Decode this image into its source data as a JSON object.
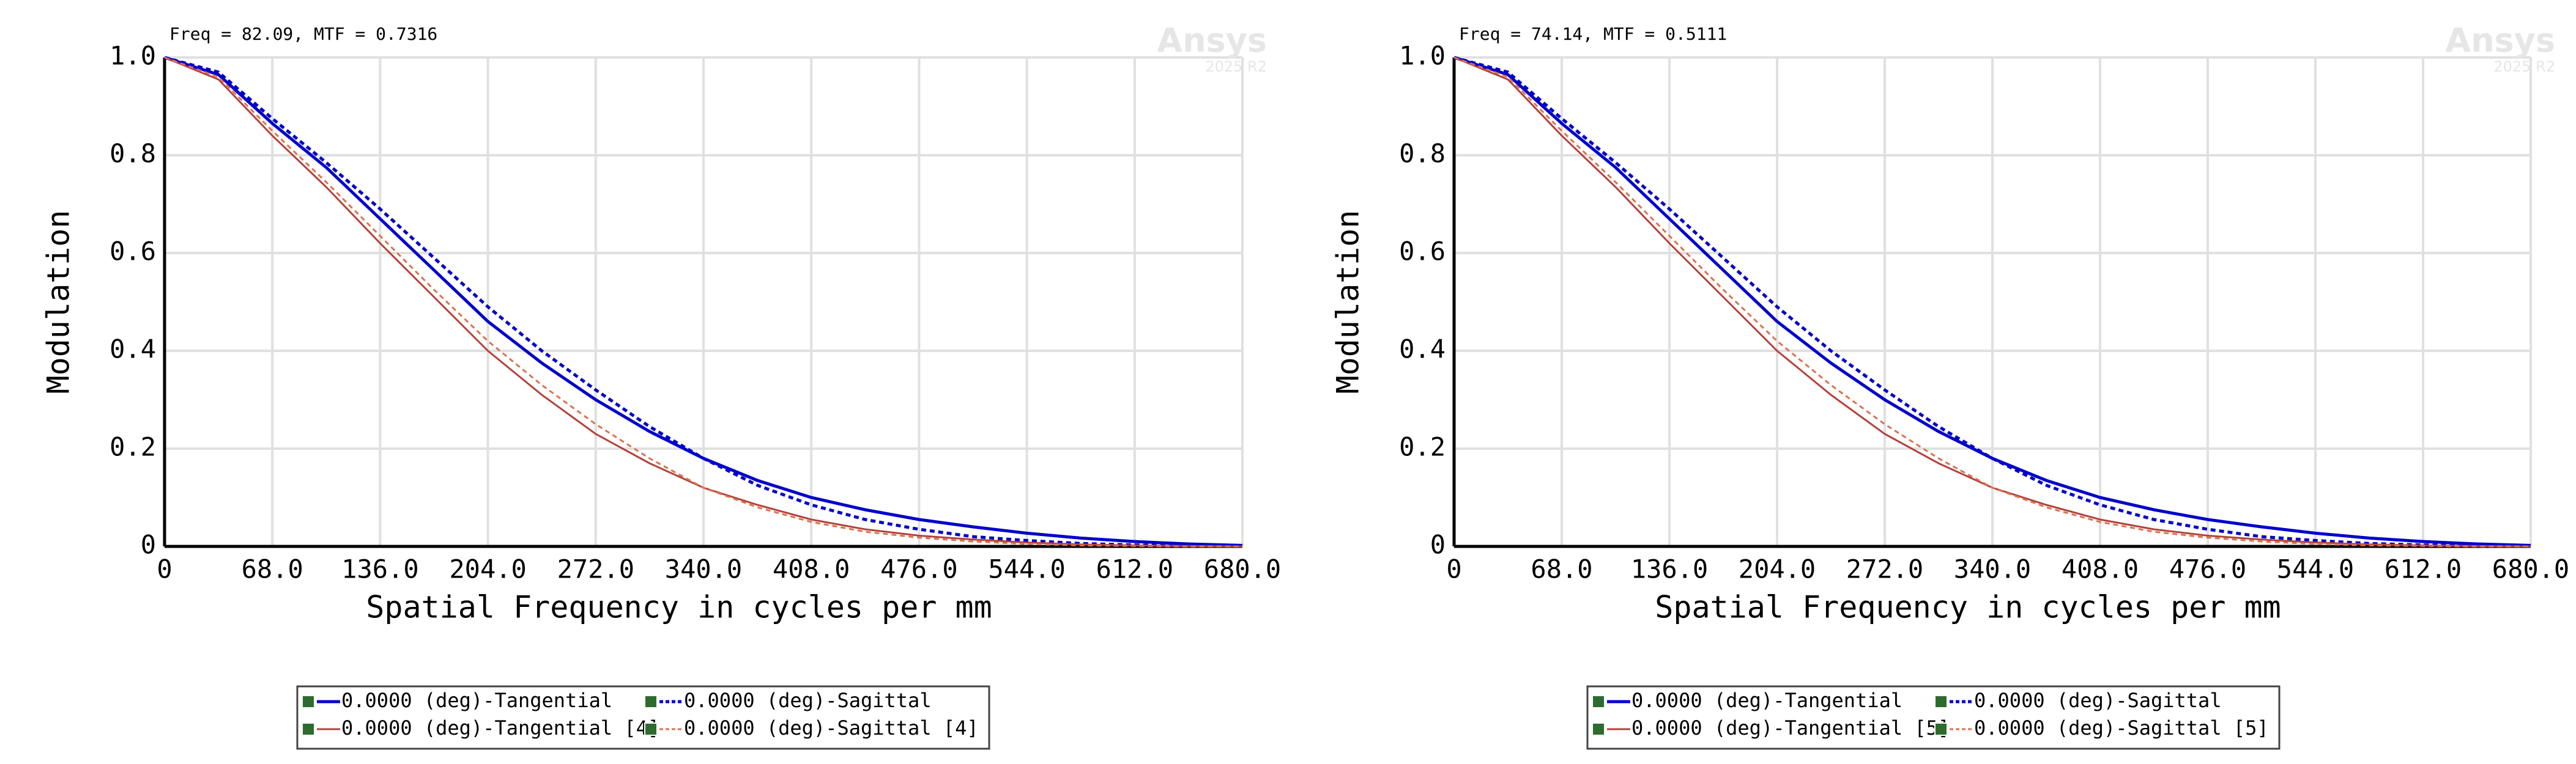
{
  "chart_data": [
    {
      "type": "line",
      "annotation": "Freq = 82.09, MTF = 0.7316",
      "watermark": "Ansys",
      "watermark_sub": "2025 R2",
      "xlabel": "Spatial Frequency in cycles per mm",
      "ylabel": "Modulation",
      "xlim": [
        0,
        680
      ],
      "ylim": [
        0,
        1
      ],
      "xticks": [
        0,
        {
          "value": 68,
          "label": "68.0"
        },
        {
          "value": 136,
          "label": "136.0"
        },
        {
          "value": 204,
          "label": "204.0"
        },
        {
          "value": 272,
          "label": "272.0"
        },
        {
          "value": 340,
          "label": "340.0"
        },
        {
          "value": 408,
          "label": "408.0"
        },
        {
          "value": 476,
          "label": "476.0"
        },
        {
          "value": 544,
          "label": "544.0"
        },
        {
          "value": 612,
          "label": "612.0"
        },
        {
          "value": 680,
          "label": "680.0"
        }
      ],
      "yticks": [
        0,
        0.2,
        0.4,
        0.6,
        0.8,
        {
          "value": 1,
          "label": "1.0"
        }
      ],
      "grid": true,
      "x": [
        0,
        34,
        68,
        102,
        136,
        170,
        204,
        238,
        272,
        306,
        340,
        374,
        408,
        442,
        476,
        510,
        544,
        578,
        612,
        646,
        680
      ],
      "series": [
        {
          "name": "0.0000 (deg)-Tangential",
          "color": "#0000cc",
          "dashed": false,
          "values": [
            1,
            0.965,
            0.865,
            0.775,
            0.67,
            0.565,
            0.46,
            0.375,
            0.3,
            0.235,
            0.18,
            0.135,
            0.1,
            0.075,
            0.055,
            0.04,
            0.027,
            0.017,
            0.01,
            0.005,
            0.002
          ]
        },
        {
          "name": "0.0000 (deg)-Sagittal",
          "color": "#0000cc",
          "dashed": true,
          "values": [
            1,
            0.97,
            0.875,
            0.785,
            0.69,
            0.59,
            0.49,
            0.4,
            0.32,
            0.245,
            0.18,
            0.125,
            0.085,
            0.055,
            0.035,
            0.02,
            0.012,
            0.006,
            0.003,
            0.001,
            0
          ]
        },
        {
          "name": "0.0000 (deg)-Tangential [4]",
          "color": "#b5413b",
          "dashed": false,
          "values": [
            1,
            0.955,
            0.84,
            0.735,
            0.62,
            0.51,
            0.4,
            0.31,
            0.23,
            0.17,
            0.12,
            0.085,
            0.055,
            0.035,
            0.022,
            0.014,
            0.008,
            0.004,
            0.002,
            0.001,
            0
          ]
        },
        {
          "name": "0.0000 (deg)-Sagittal [4]",
          "color": "#d9734e",
          "dashed": true,
          "values": [
            1,
            0.96,
            0.85,
            0.745,
            0.635,
            0.525,
            0.42,
            0.33,
            0.25,
            0.18,
            0.12,
            0.08,
            0.05,
            0.03,
            0.018,
            0.01,
            0.005,
            0.002,
            0.001,
            0,
            0
          ]
        }
      ]
    },
    {
      "type": "line",
      "annotation": "Freq = 74.14, MTF = 0.5111",
      "watermark": "Ansys",
      "watermark_sub": "2025 R2",
      "xlabel": "Spatial Frequency in cycles per mm",
      "ylabel": "Modulation",
      "xlim": [
        0,
        680
      ],
      "ylim": [
        0,
        1
      ],
      "xticks": [
        0,
        {
          "value": 68,
          "label": "68.0"
        },
        {
          "value": 136,
          "label": "136.0"
        },
        {
          "value": 204,
          "label": "204.0"
        },
        {
          "value": 272,
          "label": "272.0"
        },
        {
          "value": 340,
          "label": "340.0"
        },
        {
          "value": 408,
          "label": "408.0"
        },
        {
          "value": 476,
          "label": "476.0"
        },
        {
          "value": 544,
          "label": "544.0"
        },
        {
          "value": 612,
          "label": "612.0"
        },
        {
          "value": 680,
          "label": "680.0"
        }
      ],
      "yticks": [
        0,
        0.2,
        0.4,
        0.6,
        0.8,
        {
          "value": 1,
          "label": "1.0"
        }
      ],
      "grid": true,
      "x": [
        0,
        34,
        68,
        102,
        136,
        170,
        204,
        238,
        272,
        306,
        340,
        374,
        408,
        442,
        476,
        510,
        544,
        578,
        612,
        646,
        680
      ],
      "series": [
        {
          "name": "0.0000 (deg)-Tangential",
          "color": "#0000cc",
          "dashed": false,
          "values": [
            1,
            0.965,
            0.865,
            0.775,
            0.67,
            0.565,
            0.46,
            0.375,
            0.3,
            0.235,
            0.18,
            0.135,
            0.1,
            0.075,
            0.055,
            0.04,
            0.027,
            0.017,
            0.01,
            0.005,
            0.002
          ]
        },
        {
          "name": "0.0000 (deg)-Sagittal",
          "color": "#0000cc",
          "dashed": true,
          "values": [
            1,
            0.97,
            0.875,
            0.785,
            0.69,
            0.59,
            0.49,
            0.4,
            0.32,
            0.245,
            0.18,
            0.125,
            0.085,
            0.055,
            0.035,
            0.02,
            0.012,
            0.006,
            0.003,
            0.001,
            0
          ]
        },
        {
          "name": "0.0000 (deg)-Tangential [5]",
          "color": "#b5413b",
          "dashed": false,
          "values": [
            1,
            0.955,
            0.84,
            0.735,
            0.62,
            0.51,
            0.4,
            0.31,
            0.23,
            0.17,
            0.12,
            0.085,
            0.055,
            0.035,
            0.022,
            0.014,
            0.008,
            0.004,
            0.002,
            0.001,
            0
          ]
        },
        {
          "name": "0.0000 (deg)-Sagittal [5]",
          "color": "#d9734e",
          "dashed": true,
          "values": [
            1,
            0.96,
            0.85,
            0.745,
            0.635,
            0.525,
            0.42,
            0.33,
            0.25,
            0.18,
            0.12,
            0.08,
            0.05,
            0.03,
            0.018,
            0.01,
            0.005,
            0.002,
            0.001,
            0,
            0
          ]
        }
      ]
    }
  ]
}
